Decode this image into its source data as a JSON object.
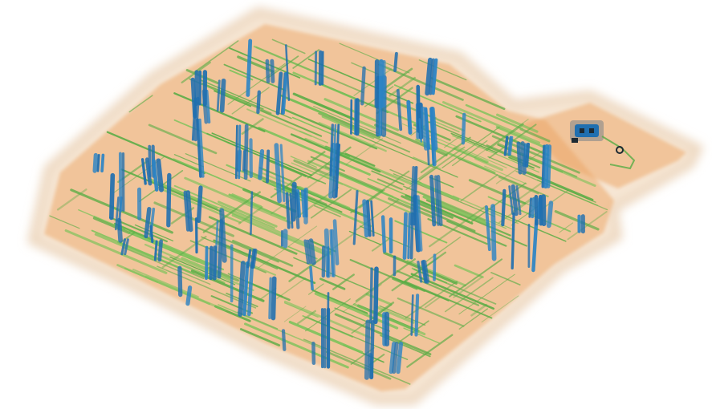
{
  "scene": {
    "kind": "3d-isometric-volume-rendering",
    "colors": {
      "background": "#ffffff",
      "halo": "#f6e6d4",
      "halo_edge": "#ecd6bd",
      "base": "#eda86a",
      "green": "#58ad45",
      "green_light": "#7cc35a",
      "blue": "#2b84c6",
      "blue_dark": "#1f6fb0",
      "gray": "#6f7b86",
      "ink": "#1d2a33"
    }
  }
}
